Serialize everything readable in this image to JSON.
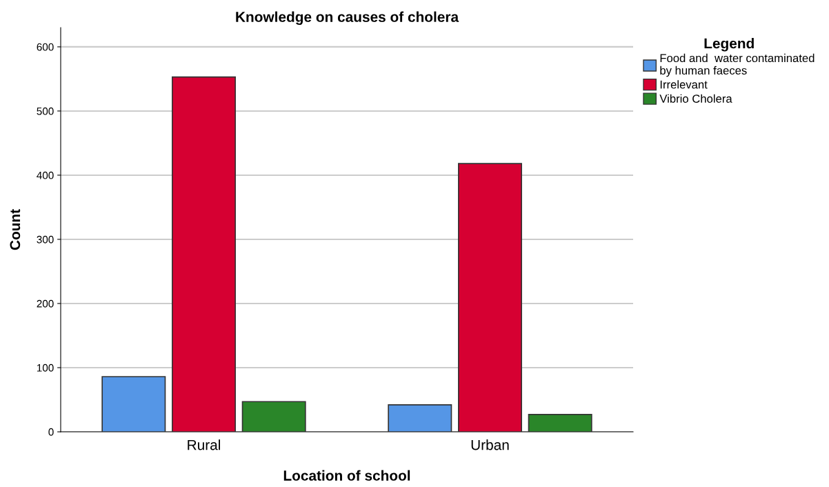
{
  "chart_data": {
    "type": "bar",
    "title": "Knowledge on causes of cholera",
    "xlabel": "Location of school",
    "ylabel": "Count",
    "legend_title": "Legend",
    "categories": [
      "Rural",
      "Urban"
    ],
    "series": [
      {
        "name": "Food and  water contaminated\nby human faeces",
        "color": "#5596e6",
        "values": [
          86,
          42
        ]
      },
      {
        "name": "Irrelevant",
        "color": "#d60032",
        "values": [
          553,
          418
        ]
      },
      {
        "name": "Vibrio Cholera",
        "color": "#2a8629",
        "values": [
          47,
          27
        ]
      }
    ],
    "ylim": [
      0,
      630
    ],
    "yticks": [
      0,
      100,
      200,
      300,
      400,
      500,
      600
    ],
    "grid": "y",
    "legend": "top right"
  }
}
